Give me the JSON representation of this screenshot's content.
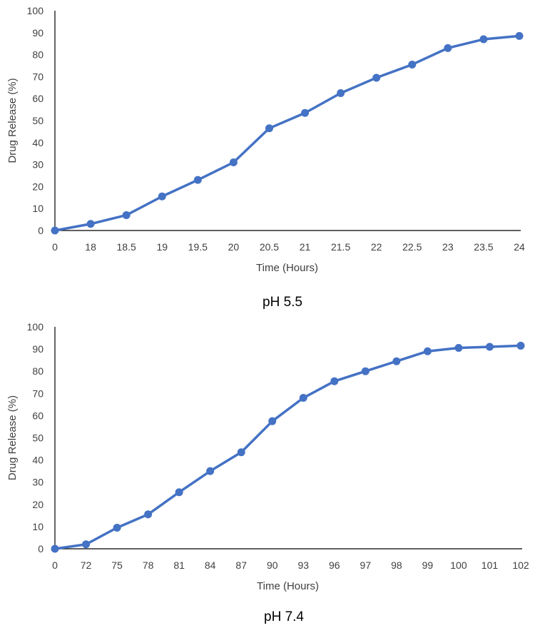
{
  "chart_data": [
    {
      "type": "line",
      "caption": "pH 5.5",
      "xlabel": "Time (Hours)",
      "ylabel": "Drug Release (%)",
      "ylim": [
        0,
        100
      ],
      "yticks": [
        "0",
        "10",
        "20",
        "30",
        "40",
        "50",
        "60",
        "70",
        "80",
        "90",
        "100"
      ],
      "categories": [
        "0",
        "18",
        "18.5",
        "19",
        "19.5",
        "20",
        "20.5",
        "21",
        "21.5",
        "22",
        "22.5",
        "23",
        "23.5",
        "24"
      ],
      "series": [
        {
          "values": [
            0,
            3,
            7,
            15.5,
            23,
            31,
            46.5,
            53.5,
            62.5,
            69.5,
            75.5,
            83,
            87,
            88.5
          ]
        }
      ],
      "grid": false,
      "colors": {
        "series": "#4472C4",
        "axis": "#000000",
        "text": "#404040"
      }
    },
    {
      "type": "line",
      "caption": "pH 7.4",
      "xlabel": "Time (Hours)",
      "ylabel": "Drug Release (%)",
      "ylim": [
        0,
        100
      ],
      "yticks": [
        "0",
        "10",
        "20",
        "30",
        "40",
        "50",
        "60",
        "70",
        "80",
        "90",
        "100"
      ],
      "categories": [
        "0",
        "72",
        "75",
        "78",
        "81",
        "84",
        "87",
        "90",
        "93",
        "96",
        "97",
        "98",
        "99",
        "100",
        "101",
        "102"
      ],
      "series": [
        {
          "values": [
            0,
            2,
            9.5,
            15.5,
            25.5,
            35,
            43.5,
            57.5,
            68,
            75.5,
            80,
            84.5,
            89,
            90.5,
            91,
            91.5
          ]
        }
      ],
      "grid": false,
      "colors": {
        "series": "#4472C4",
        "axis": "#000000",
        "text": "#404040"
      }
    }
  ]
}
